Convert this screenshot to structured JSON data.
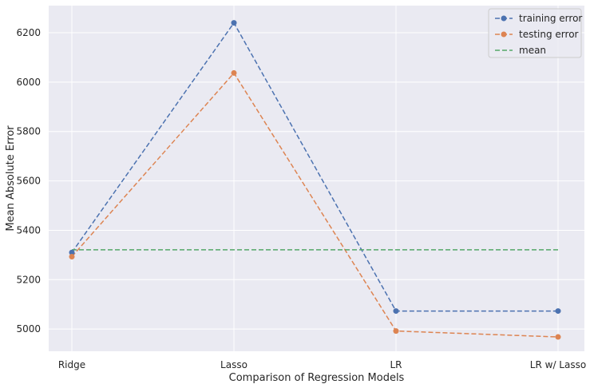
{
  "chart_data": {
    "type": "line",
    "title": "",
    "xlabel": "Comparison of Regression Models",
    "ylabel": "Mean Absolute Error",
    "categories": [
      "Ridge",
      "Lasso",
      "LR",
      "LR w/ Lasso"
    ],
    "ylim": [
      4910,
      6310
    ],
    "yticks": [
      5000,
      5200,
      5400,
      5600,
      5800,
      6000,
      6200
    ],
    "grid": true,
    "legend_position": "top-right",
    "series": [
      {
        "name": "training error",
        "values": [
          5310,
          6240,
          5073,
          5073
        ],
        "color": "#4c72b0",
        "line_style": "dashed",
        "marker": "circle"
      },
      {
        "name": "testing error",
        "values": [
          5293,
          6037,
          4992,
          4968
        ],
        "color": "#dd8452",
        "line_style": "dashed",
        "marker": "circle"
      },
      {
        "name": "mean",
        "values": [
          5321,
          5321,
          5321,
          5321
        ],
        "color": "#55a868",
        "line_style": "dashed",
        "marker": "none"
      }
    ]
  },
  "style": {
    "plot_background": "#eaeaf2",
    "grid_color": "#ffffff",
    "text_color": "#262626"
  }
}
